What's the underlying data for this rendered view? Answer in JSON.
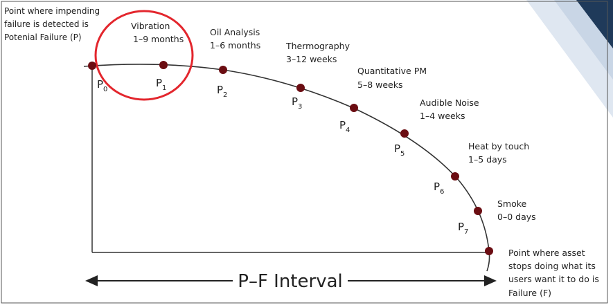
{
  "colors": {
    "curve": "#333333",
    "point": "#6b0d12",
    "circle": "#e3262d",
    "ribbon_dark": "#1f3a5a",
    "ribbon_light": "#dfe7f1"
  },
  "start_note": [
    "Point where impending",
    "failure is detected is",
    "Potenial Failure (P)"
  ],
  "end_note": [
    "Point where asset",
    "stops doing what its",
    "users want it to do is",
    "Failure (F)"
  ],
  "interval_label": "P–F Interval",
  "stages": [
    {
      "sym": "P",
      "sub": "0",
      "name": "",
      "time": ""
    },
    {
      "sym": "P",
      "sub": "1",
      "name": "Vibration",
      "time": "1–9 months"
    },
    {
      "sym": "P",
      "sub": "2",
      "name": "Oil Analysis",
      "time": "1–6 months"
    },
    {
      "sym": "P",
      "sub": "3",
      "name": "Thermography",
      "time": "3–12 weeks"
    },
    {
      "sym": "P",
      "sub": "4",
      "name": "Quantitative PM",
      "time": "5–8 weeks"
    },
    {
      "sym": "P",
      "sub": "5",
      "name": "Audible Noise",
      "time": "1–4 weeks"
    },
    {
      "sym": "P",
      "sub": "6",
      "name": "Heat by touch",
      "time": "1–5 days"
    },
    {
      "sym": "P",
      "sub": "7",
      "name": "Smoke",
      "time": "0–0 days"
    }
  ]
}
